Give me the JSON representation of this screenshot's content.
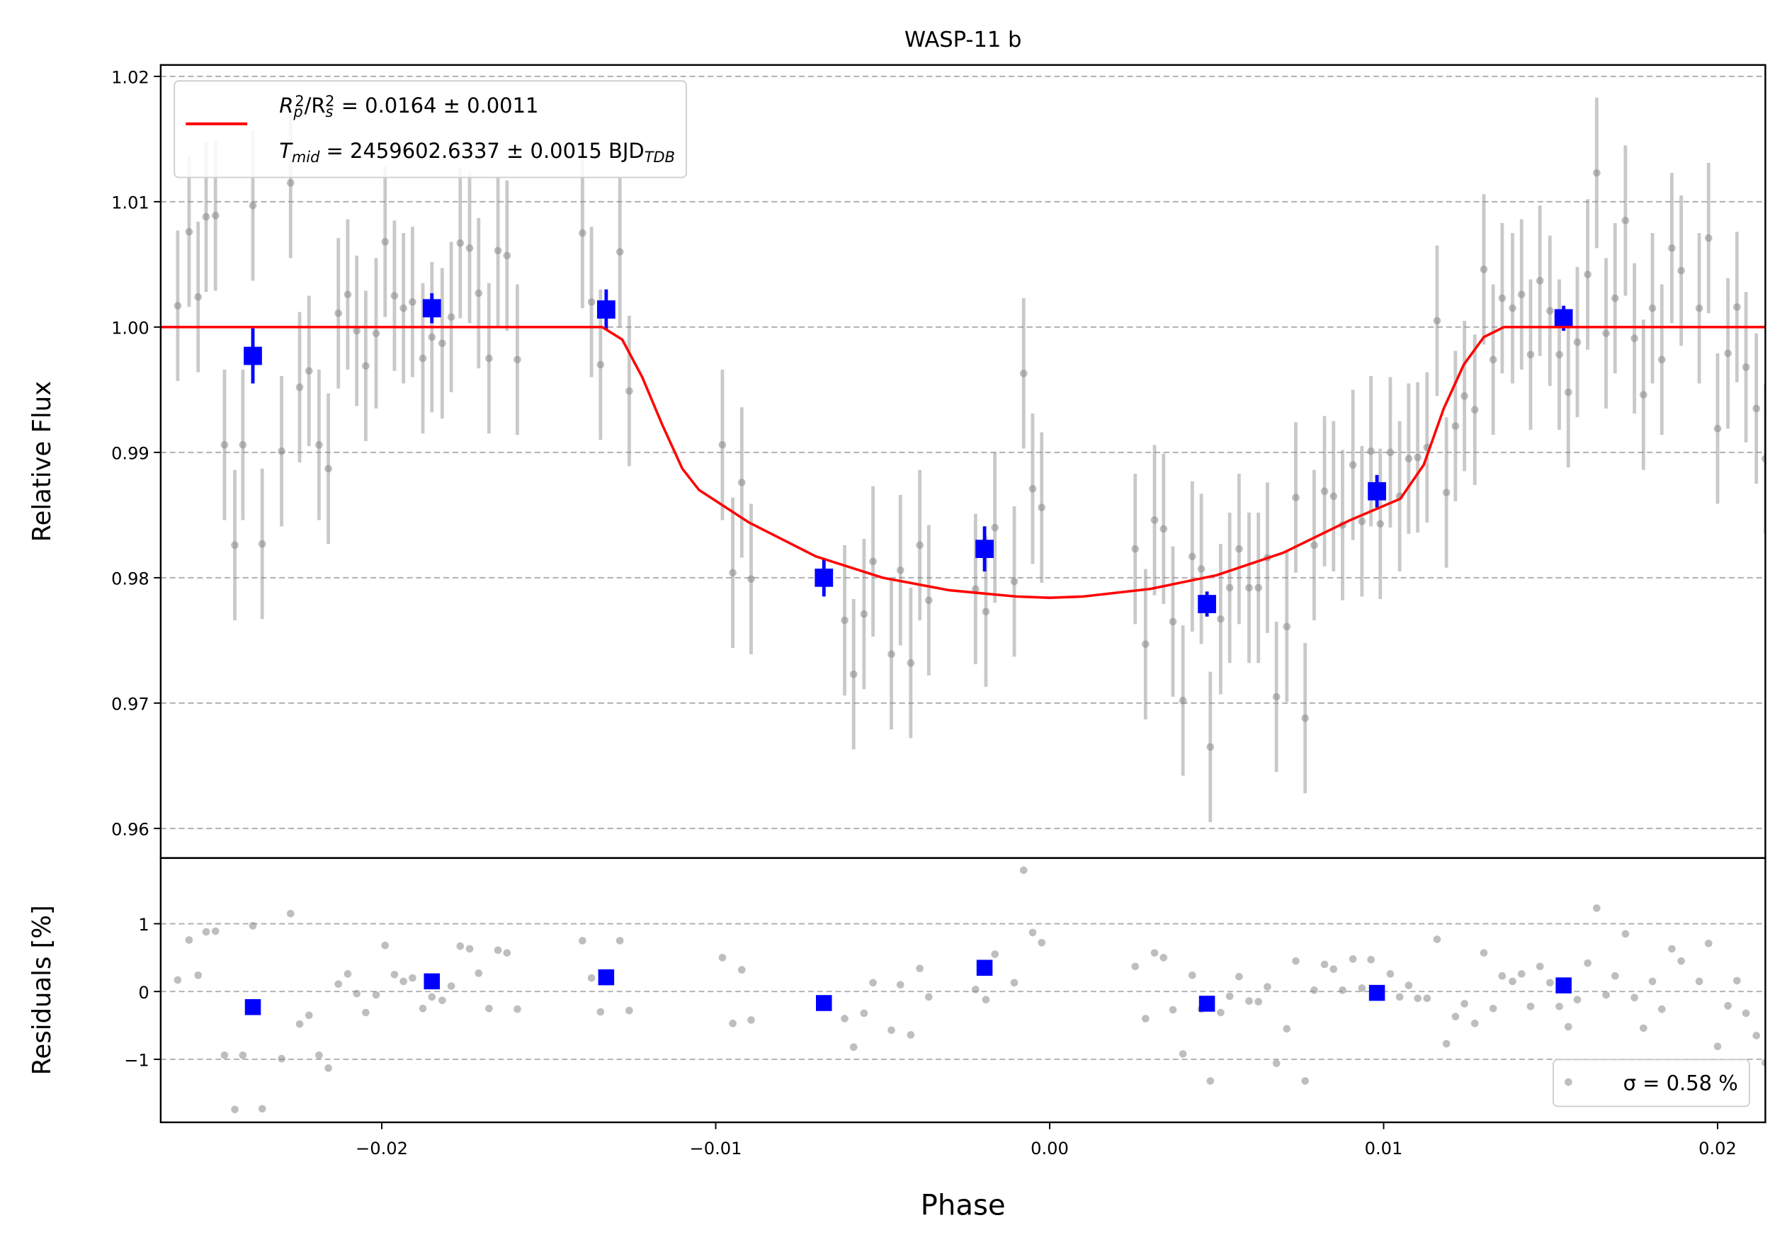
{
  "chart_data": [
    {
      "type": "scatter",
      "title": "WASP-11 b",
      "ylabel": "Relative Flux",
      "xlim": [
        -0.02662,
        0.02143
      ],
      "ylim": [
        0.95764,
        1.02091
      ],
      "yticks": [
        0.96,
        0.97,
        0.98,
        0.99,
        {
          "value": 1.0,
          "label": "1.00"
        },
        1.01,
        1.02
      ],
      "grid": true,
      "legend": "upper left",
      "series": [
        {
          "kind": "points",
          "color": "#888888",
          "error": 0.006,
          "x": [
            -0.02611,
            -0.02577,
            -0.0255,
            -0.02526,
            -0.02498,
            -0.02471,
            -0.0244,
            -0.02416,
            -0.02386,
            -0.02358,
            -0.023,
            -0.02273,
            -0.02246,
            -0.02218,
            -0.02188,
            -0.0216,
            -0.0213,
            -0.02102,
            -0.02075,
            -0.02048,
            -0.02017,
            -0.0199,
            -0.01962,
            -0.01935,
            -0.01908,
            -0.01877,
            -0.0185,
            -0.01819,
            -0.01792,
            -0.01765,
            -0.01737,
            -0.0171,
            -0.01679,
            -0.01652,
            -0.01625,
            -0.01594,
            -0.01399,
            -0.01372,
            -0.01345,
            -0.01287,
            -0.01259,
            -0.0098,
            -0.00949,
            -0.00922,
            -0.00894,
            -0.00614,
            -0.00587,
            -0.00556,
            -0.00529,
            -0.00474,
            -0.00447,
            -0.00416,
            -0.00389,
            -0.00362,
            -0.00222,
            -0.00191,
            -0.00164,
            -0.00106,
            -0.00078,
            -0.00051,
            -0.00024,
            0.00256,
            0.00287,
            0.00314,
            0.00341,
            0.00369,
            0.00399,
            0.00427,
            0.00454,
            0.00481,
            0.00512,
            0.00539,
            0.00567,
            0.00597,
            0.00625,
            0.00652,
            0.00679,
            0.0071,
            0.00737,
            0.00765,
            0.00792,
            0.00823,
            0.0085,
            0.00877,
            0.00908,
            0.00935,
            0.00962,
            0.0099,
            0.0102,
            0.01048,
            0.01075,
            0.01102,
            0.0113,
            0.0116,
            0.01188,
            0.01215,
            0.01242,
            0.01273,
            0.013,
            0.01328,
            0.01355,
            0.01386,
            0.01413,
            0.0144,
            0.01468,
            0.01498,
            0.01526,
            0.01553,
            0.0158,
            0.01611,
            0.01638,
            0.01666,
            0.01693,
            0.01724,
            0.01751,
            0.01778,
            0.01805,
            0.01833,
            0.01863,
            0.01891,
            0.01945,
            0.01973,
            0.02,
            0.02031,
            0.02058,
            0.02085,
            0.02116,
            0.02143
          ],
          "values": [
            1.0017,
            1.0076,
            1.0024,
            1.0088,
            1.0089,
            0.9906,
            0.9826,
            0.9906,
            1.0097,
            0.9827,
            0.9901,
            1.0115,
            0.9952,
            0.9965,
            0.9906,
            0.9887,
            1.0011,
            1.0026,
            0.9997,
            0.9969,
            0.9995,
            1.0068,
            1.0025,
            1.0015,
            1.002,
            0.9975,
            0.9992,
            0.9987,
            1.0008,
            1.0067,
            1.0063,
            1.0027,
            0.9975,
            1.0061,
            1.0057,
            0.9974,
            1.0075,
            1.002,
            0.997,
            1.006,
            0.9949,
            0.9906,
            0.9804,
            0.9876,
            0.9799,
            0.9766,
            0.9723,
            0.9771,
            0.9813,
            0.9739,
            0.9806,
            0.9732,
            0.9826,
            0.9782,
            0.9791,
            0.9773,
            0.984,
            0.9797,
            0.9963,
            0.9871,
            0.9856,
            0.9823,
            0.9747,
            0.9846,
            0.9839,
            0.9765,
            0.9702,
            0.9817,
            0.9807,
            0.9665,
            0.9767,
            0.9792,
            0.9823,
            0.9792,
            0.9792,
            0.9816,
            0.9705,
            0.9761,
            0.9864,
            0.9688,
            0.9826,
            0.9869,
            0.9865,
            0.9842,
            0.989,
            0.9845,
            0.9901,
            0.9843,
            0.99,
            0.9865,
            0.9895,
            0.9896,
            0.9904,
            1.0005,
            0.9868,
            0.9921,
            0.9945,
            0.9934,
            1.0046,
            0.9974,
            1.0023,
            1.0015,
            1.0026,
            0.9978,
            1.0037,
            1.0013,
            0.9978,
            0.9948,
            0.9988,
            1.0042,
            1.0123,
            0.9995,
            1.0023,
            1.0085,
            0.9991,
            0.9946,
            1.0015,
            0.9974,
            1.0063,
            1.0045,
            1.0015,
            1.0071,
            0.9919,
            0.9979,
            1.0016,
            0.9968,
            0.9935,
            0.9895
          ]
        },
        {
          "kind": "squares",
          "color": "#0000ff",
          "x": [
            -0.02386,
            -0.0185,
            -0.01328,
            -0.00676,
            -0.00195,
            0.00471,
            0.0098,
            0.01539
          ],
          "values": [
            0.9977,
            1.0015,
            1.0014,
            0.98,
            0.9823,
            0.9779,
            0.9869,
            1.0007
          ],
          "errors": [
            0.0022,
            0.0012,
            0.0016,
            0.0015,
            0.0018,
            0.001,
            0.0013,
            0.001
          ]
        },
        {
          "kind": "line",
          "color": "#ff0000",
          "label_lines": [
            [
              {
                "text": "R"
              },
              {
                "text": "p",
                "script": "sub"
              },
              {
                "text": "2",
                "script": "sup"
              },
              {
                "text": "/R"
              },
              {
                "text": "s",
                "script": "sub"
              },
              {
                "text": "2",
                "script": "sup"
              },
              {
                "text": " = 0.0164 ± 0.0011"
              }
            ],
            [
              {
                "text": "T"
              },
              {
                "text": "mid",
                "script": "sub"
              },
              {
                "text": " = 2459602.6337 ± 0.0015 BJD"
              },
              {
                "text": "TDB",
                "script": "sub"
              }
            ]
          ],
          "x": [
            -0.02662,
            -0.0134,
            -0.0128,
            -0.0122,
            -0.0116,
            -0.011,
            -0.0105,
            -0.009,
            -0.007,
            -0.005,
            -0.003,
            -0.001,
            0,
            0.001,
            0.003,
            0.005,
            0.007,
            0.009,
            0.0105,
            0.0112,
            0.0118,
            0.0124,
            0.013,
            0.0136,
            0.02143
          ],
          "values": [
            1.0,
            1.0,
            0.999,
            0.996,
            0.9922,
            0.9887,
            0.987,
            0.9844,
            0.9817,
            0.98,
            0.979,
            0.9785,
            0.9784,
            0.9785,
            0.9791,
            0.9802,
            0.982,
            0.9846,
            0.9863,
            0.989,
            0.9935,
            0.997,
            0.9992,
            1.0,
            1.0
          ]
        }
      ]
    },
    {
      "type": "scatter",
      "xlabel": "Phase",
      "ylabel": "Residuals [%]",
      "xlim": [
        -0.02662,
        0.02143
      ],
      "ylim": [
        -1.93,
        1.97
      ],
      "xticks": [
        {
          "value": -0.02,
          "label": "−0.02"
        },
        {
          "value": -0.01,
          "label": "−0.01"
        },
        {
          "value": 0,
          "label": "0.00"
        },
        0.01,
        0.02
      ],
      "yticks": [
        {
          "value": -1,
          "label": "−1"
        },
        0,
        1
      ],
      "grid": true,
      "legend": "lower right",
      "series": [
        {
          "kind": "points",
          "color": "#888888",
          "name": "σ = 0.58 %",
          "x": [
            -0.02611,
            -0.02577,
            -0.0255,
            -0.02526,
            -0.02498,
            -0.02471,
            -0.0244,
            -0.02416,
            -0.02386,
            -0.02358,
            -0.023,
            -0.02273,
            -0.02246,
            -0.02218,
            -0.02188,
            -0.0216,
            -0.0213,
            -0.02102,
            -0.02075,
            -0.02048,
            -0.02017,
            -0.0199,
            -0.01962,
            -0.01935,
            -0.01908,
            -0.01877,
            -0.0185,
            -0.01819,
            -0.01792,
            -0.01765,
            -0.01737,
            -0.0171,
            -0.01679,
            -0.01652,
            -0.01625,
            -0.01594,
            -0.01399,
            -0.01372,
            -0.01345,
            -0.01287,
            -0.01259,
            -0.0098,
            -0.00949,
            -0.00922,
            -0.00894,
            -0.00614,
            -0.00587,
            -0.00556,
            -0.00529,
            -0.00474,
            -0.00447,
            -0.00416,
            -0.00389,
            -0.00362,
            -0.00222,
            -0.00191,
            -0.00164,
            -0.00106,
            -0.00078,
            -0.00051,
            -0.00024,
            0.00256,
            0.00287,
            0.00314,
            0.00341,
            0.00369,
            0.00399,
            0.00427,
            0.00454,
            0.00481,
            0.00512,
            0.00539,
            0.00567,
            0.00597,
            0.00625,
            0.00652,
            0.00679,
            0.0071,
            0.00737,
            0.00765,
            0.00792,
            0.00823,
            0.0085,
            0.00877,
            0.00908,
            0.00935,
            0.00962,
            0.0099,
            0.0102,
            0.01048,
            0.01075,
            0.01102,
            0.0113,
            0.0116,
            0.01188,
            0.01215,
            0.01242,
            0.01273,
            0.013,
            0.01328,
            0.01355,
            0.01386,
            0.01413,
            0.0144,
            0.01468,
            0.01498,
            0.01526,
            0.01553,
            0.0158,
            0.01611,
            0.01638,
            0.01666,
            0.01693,
            0.01724,
            0.01751,
            0.01778,
            0.01805,
            0.01833,
            0.01863,
            0.01891,
            0.01945,
            0.01973,
            0.02,
            0.02031,
            0.02058,
            0.02085,
            0.02116,
            0.02143
          ],
          "values": [
            0.17,
            0.76,
            0.24,
            0.88,
            0.89,
            -0.94,
            -1.74,
            -0.94,
            0.97,
            -1.73,
            -0.99,
            1.15,
            -0.48,
            -0.35,
            -0.94,
            -1.13,
            0.11,
            0.26,
            -0.03,
            -0.31,
            -0.05,
            0.68,
            0.25,
            0.15,
            0.2,
            -0.25,
            -0.08,
            -0.13,
            0.08,
            0.67,
            0.63,
            0.27,
            -0.25,
            0.61,
            0.57,
            -0.26,
            0.75,
            0.2,
            -0.3,
            0.75,
            -0.28,
            0.5,
            -0.47,
            0.32,
            -0.42,
            -0.4,
            -0.82,
            -0.32,
            0.13,
            -0.57,
            0.1,
            -0.64,
            0.34,
            -0.08,
            0.03,
            -0.12,
            0.55,
            0.13,
            1.79,
            0.87,
            0.72,
            0.37,
            -0.4,
            0.57,
            0.5,
            -0.27,
            -0.92,
            0.24,
            -0.26,
            -1.32,
            -0.31,
            -0.07,
            0.22,
            -0.14,
            -0.15,
            0.07,
            -1.06,
            -0.55,
            0.45,
            -1.32,
            0.02,
            0.4,
            0.33,
            0.02,
            0.48,
            0.05,
            0.47,
            -0.02,
            0.26,
            -0.08,
            0.09,
            -0.1,
            -0.1,
            0.77,
            -0.77,
            -0.37,
            -0.18,
            -0.47,
            0.57,
            -0.25,
            0.23,
            0.15,
            0.26,
            -0.22,
            0.37,
            0.13,
            -0.22,
            -0.52,
            -0.12,
            0.42,
            1.23,
            -0.05,
            0.23,
            0.85,
            -0.09,
            -0.54,
            0.15,
            -0.26,
            0.63,
            0.45,
            0.15,
            0.71,
            -0.81,
            -0.21,
            0.16,
            -0.32,
            -0.65,
            -1.05
          ]
        },
        {
          "kind": "squares",
          "color": "#0000ff",
          "x": [
            -0.02386,
            -0.0185,
            -0.01328,
            -0.00676,
            -0.00195,
            0.00471,
            0.0098,
            0.01539
          ],
          "values": [
            -0.23,
            0.15,
            0.21,
            -0.17,
            0.35,
            -0.18,
            -0.02,
            0.09
          ]
        }
      ]
    }
  ]
}
